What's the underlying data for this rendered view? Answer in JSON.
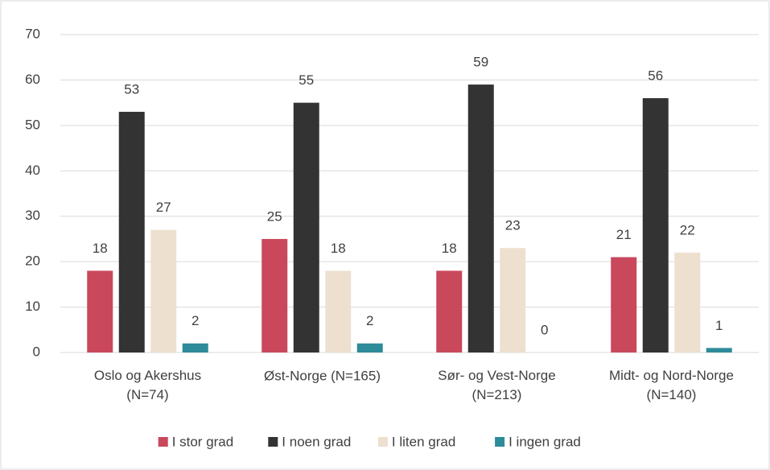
{
  "chart_data": {
    "type": "bar",
    "categories": [
      "Oslo og Akershus\n(N=74)",
      "Øst-Norge (N=165)",
      "Sør- og Vest-Norge\n(N=213)",
      "Midt- og Nord-Norge\n(N=140)"
    ],
    "series": [
      {
        "name": "I stor grad",
        "color": "#c9485b",
        "values": [
          18,
          25,
          18,
          21
        ]
      },
      {
        "name": "I noen grad",
        "color": "#333333",
        "values": [
          53,
          55,
          59,
          56
        ]
      },
      {
        "name": "I liten grad",
        "color": "#ede0cf",
        "values": [
          27,
          18,
          23,
          22
        ]
      },
      {
        "name": "I ingen grad",
        "color": "#2e8b99",
        "values": [
          2,
          2,
          0,
          1
        ]
      }
    ],
    "ylim": [
      0,
      70
    ],
    "yticks": [
      0,
      10,
      20,
      30,
      40,
      50,
      60,
      70
    ],
    "grid": true,
    "legend": "bottom"
  }
}
